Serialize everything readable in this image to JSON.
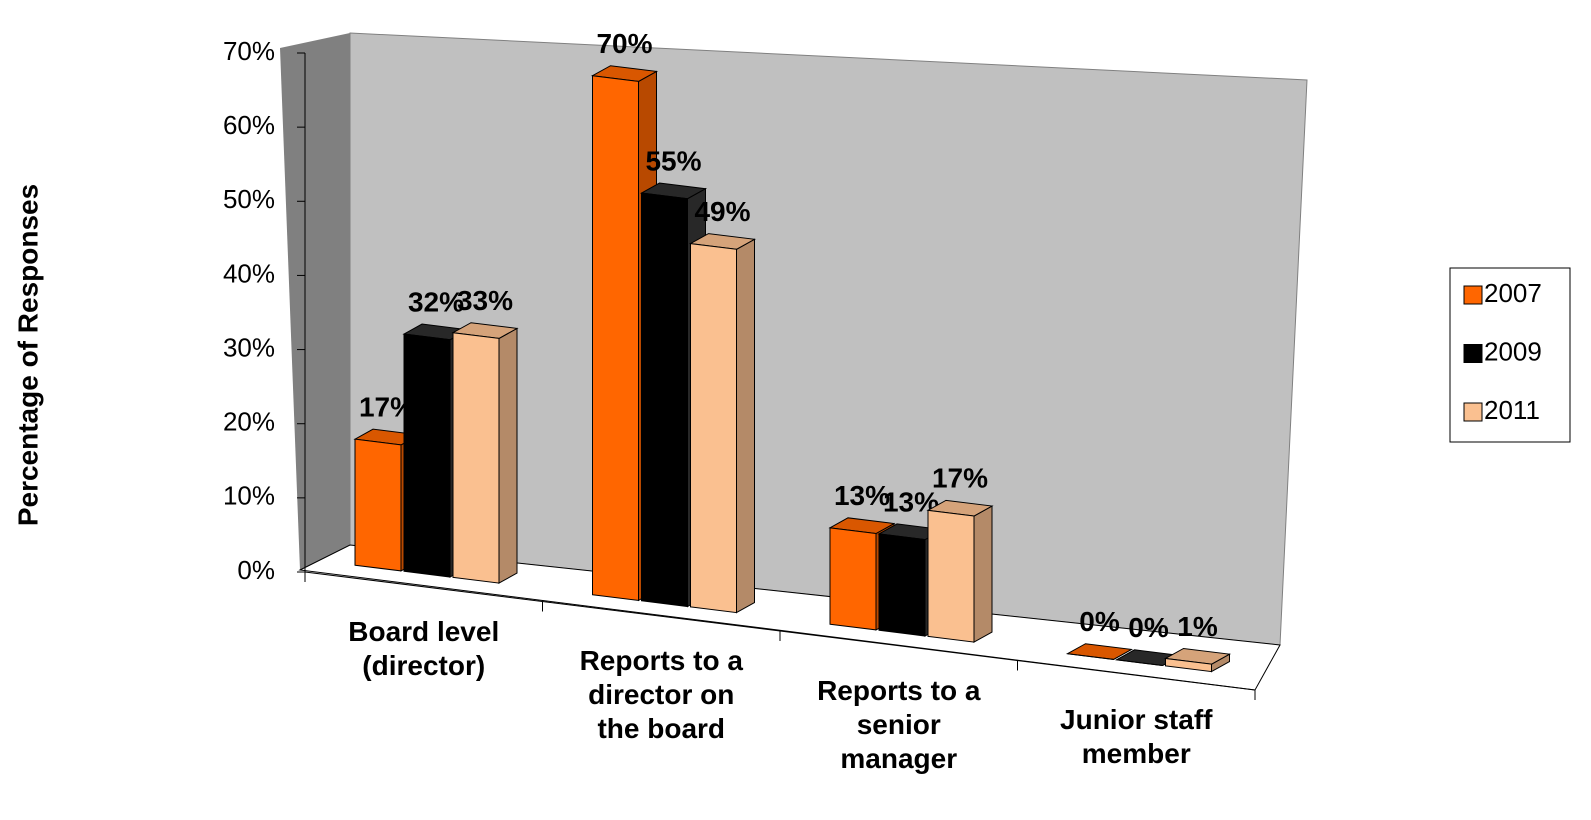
{
  "chart_data": {
    "type": "bar3d",
    "y_axis_label": "Percentage of Responses",
    "categories": [
      "Board level (director)",
      "Reports to a director on the board",
      "Reports to a senior manager",
      "Junior staff member"
    ],
    "series": [
      {
        "name": "2007",
        "color": "#ff6600",
        "values": [
          17,
          70,
          13,
          0
        ],
        "value_labels": [
          "17%",
          "70%",
          "13%",
          "0%"
        ]
      },
      {
        "name": "2009",
        "color": "#000000",
        "values": [
          32,
          55,
          13,
          0
        ],
        "value_labels": [
          "32%",
          "55%",
          "13%",
          "0%"
        ]
      },
      {
        "name": "2011",
        "color": "#fac090",
        "values": [
          33,
          49,
          17,
          1
        ],
        "value_labels": [
          "33%",
          "49%",
          "17%",
          "1%"
        ]
      }
    ],
    "ylim": [
      0,
      70
    ],
    "yticks": [
      {
        "value": 0,
        "label": "0%"
      },
      {
        "value": 10,
        "label": "10%"
      },
      {
        "value": 20,
        "label": "20%"
      },
      {
        "value": 30,
        "label": "30%"
      },
      {
        "value": 40,
        "label": "40%"
      },
      {
        "value": 50,
        "label": "50%"
      },
      {
        "value": 60,
        "label": "60%"
      },
      {
        "value": 70,
        "label": "70%"
      }
    ],
    "legend": "right"
  }
}
